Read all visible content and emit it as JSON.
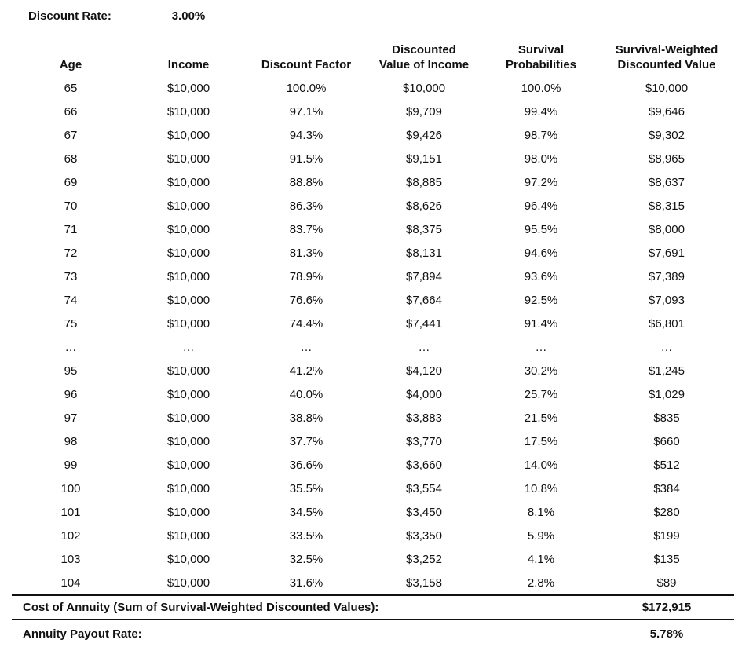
{
  "discount_rate": {
    "label": "Discount Rate:",
    "value": "3.00%"
  },
  "footer": {
    "cost_label": "Cost of Annuity (Sum of Survival-Weighted Discounted Values):",
    "cost_value": "$172,915",
    "payout_label": "Annuity Payout Rate:",
    "payout_value": "5.78%"
  },
  "colors": {
    "text": "#111111",
    "background": "#ffffff",
    "rule_lines": "#111111"
  },
  "chart_data": {
    "type": "table",
    "title": "Annuity cost calculation table",
    "discount_rate": "3.00%",
    "columns": [
      "Age",
      "Income",
      "Discount Factor",
      "Discounted\nValue of Income",
      "Survival\nProbabilities",
      "Survival-Weighted\nDiscounted Value"
    ],
    "rows": [
      [
        "65",
        "$10,000",
        "100.0%",
        "$10,000",
        "100.0%",
        "$10,000"
      ],
      [
        "66",
        "$10,000",
        "97.1%",
        "$9,709",
        "99.4%",
        "$9,646"
      ],
      [
        "67",
        "$10,000",
        "94.3%",
        "$9,426",
        "98.7%",
        "$9,302"
      ],
      [
        "68",
        "$10,000",
        "91.5%",
        "$9,151",
        "98.0%",
        "$8,965"
      ],
      [
        "69",
        "$10,000",
        "88.8%",
        "$8,885",
        "97.2%",
        "$8,637"
      ],
      [
        "70",
        "$10,000",
        "86.3%",
        "$8,626",
        "96.4%",
        "$8,315"
      ],
      [
        "71",
        "$10,000",
        "83.7%",
        "$8,375",
        "95.5%",
        "$8,000"
      ],
      [
        "72",
        "$10,000",
        "81.3%",
        "$8,131",
        "94.6%",
        "$7,691"
      ],
      [
        "73",
        "$10,000",
        "78.9%",
        "$7,894",
        "93.6%",
        "$7,389"
      ],
      [
        "74",
        "$10,000",
        "76.6%",
        "$7,664",
        "92.5%",
        "$7,093"
      ],
      [
        "75",
        "$10,000",
        "74.4%",
        "$7,441",
        "91.4%",
        "$6,801"
      ],
      [
        "…",
        "…",
        "…",
        "…",
        "…",
        "…"
      ],
      [
        "95",
        "$10,000",
        "41.2%",
        "$4,120",
        "30.2%",
        "$1,245"
      ],
      [
        "96",
        "$10,000",
        "40.0%",
        "$4,000",
        "25.7%",
        "$1,029"
      ],
      [
        "97",
        "$10,000",
        "38.8%",
        "$3,883",
        "21.5%",
        "$835"
      ],
      [
        "98",
        "$10,000",
        "37.7%",
        "$3,770",
        "17.5%",
        "$660"
      ],
      [
        "99",
        "$10,000",
        "36.6%",
        "$3,660",
        "14.0%",
        "$512"
      ],
      [
        "100",
        "$10,000",
        "35.5%",
        "$3,554",
        "10.8%",
        "$384"
      ],
      [
        "101",
        "$10,000",
        "34.5%",
        "$3,450",
        "8.1%",
        "$280"
      ],
      [
        "102",
        "$10,000",
        "33.5%",
        "$3,350",
        "5.9%",
        "$199"
      ],
      [
        "103",
        "$10,000",
        "32.5%",
        "$3,252",
        "4.1%",
        "$135"
      ],
      [
        "104",
        "$10,000",
        "31.6%",
        "$3,158",
        "2.8%",
        "$89"
      ]
    ],
    "summary": {
      "cost_of_annuity": "$172,915",
      "annuity_payout_rate": "5.78%"
    }
  }
}
